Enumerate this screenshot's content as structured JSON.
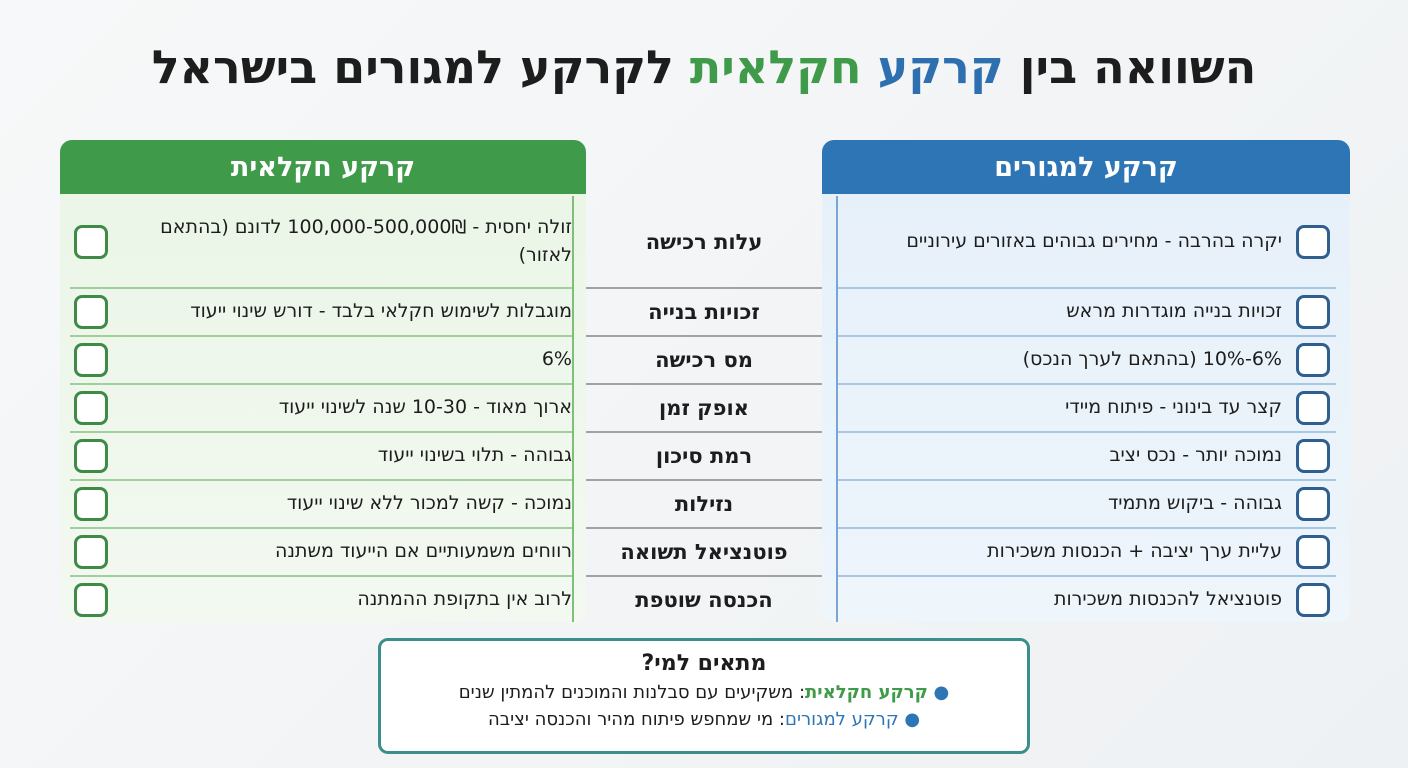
{
  "title_parts": [
    "השוואה בין ",
    "קרקע",
    " חקלאית",
    " לקרקע למגורים בישראל"
  ],
  "columns": {
    "residential": "קרקע למגורים",
    "agricultural": "קרקע חקלאית"
  },
  "rows": [
    {
      "criterion": "עלות רכישה",
      "residential": "יקרה בהרבה - מחירים גבוהים באזורים עירוניים",
      "agricultural": "זולה יחסית - 100,000-500,000₪ לדונם (בהתאם לאזור)"
    },
    {
      "criterion": "זכויות בנייה",
      "residential": "זכויות בנייה מוגדרות מראש",
      "agricultural": "מוגבלות לשימוש חקלאי בלבד - דורש שינוי ייעוד"
    },
    {
      "criterion": "מס רכישה",
      "residential": "6%-10% (בהתאם לערך הנכס)",
      "agricultural": "6%"
    },
    {
      "criterion": "אופק זמן",
      "residential": "קצר עד בינוני - פיתוח מיידי",
      "agricultural": "ארוך מאוד - 10-30 שנה לשינוי ייעוד"
    },
    {
      "criterion": "רמת סיכון",
      "residential": "נמוכה יותר - נכס יציב",
      "agricultural": "גבוהה - תלוי בשינוי ייעוד"
    },
    {
      "criterion": "נזילות",
      "residential": "גבוהה - ביקוש מתמיד",
      "agricultural": "נמוכה - קשה למכור ללא שינוי ייעוד"
    },
    {
      "criterion": "פוטנציאל תשואה",
      "residential": "עליית ערך יציבה + הכנסות משכירות",
      "agricultural": "רווחים משמעותיים אם הייעוד משתנה"
    },
    {
      "criterion": "הכנסה שוטפת",
      "residential": "פוטנציאל להכנסות משכירות",
      "agricultural": "לרוב אין בתקופת ההמתנה"
    }
  ],
  "suitability": {
    "title": "מתאים למי?",
    "items": [
      {
        "label": "קרקע חקלאית",
        "text": ": משקיעים עם סבלנות והמוכנים להמתין שנים"
      },
      {
        "label": "קרקע למגורים",
        "text": ": מי שמחפש פיתוח מהיר והכנסה יציבה"
      }
    ]
  }
}
